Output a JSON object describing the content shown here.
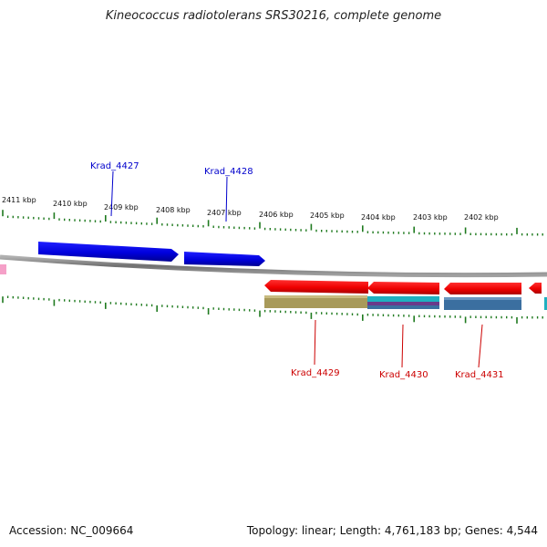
{
  "title": "Kineococcus radiotolerans SRS30216, complete genome",
  "footer": {
    "accession": "Accession: NC_009664",
    "summary": "Topology: linear; Length: 4,761,183 bp; Genes: 4,544"
  },
  "kbp_labels": [
    "2411 kbp",
    "2410 kbp",
    "2409 kbp",
    "2408 kbp",
    "2407 kbp",
    "2406 kbp",
    "2405 kbp",
    "2404 kbp",
    "2403 kbp",
    "2402 kbp"
  ],
  "genes_top": [
    {
      "label": "Krad_4427",
      "color": "#0000cc"
    },
    {
      "label": "Krad_4428",
      "color": "#0000cc"
    }
  ],
  "genes_bottom": [
    {
      "label": "Krad_4429",
      "color": "#cc0000"
    },
    {
      "label": "Krad_4430",
      "color": "#cc0000"
    },
    {
      "label": "Krad_4431",
      "color": "#cc0000"
    }
  ],
  "colors": {
    "forward_gene": "#0000ee",
    "reverse_gene": "#ee0000",
    "backbone": "#808080",
    "ticks": "#1f7a1f",
    "domain_olive": "#a89a5a",
    "domain_cyan": "#20b0c0",
    "domain_blue": "#3b6fa0",
    "domain_purple": "#6a3a8a",
    "pink": "#f5a0c8"
  }
}
